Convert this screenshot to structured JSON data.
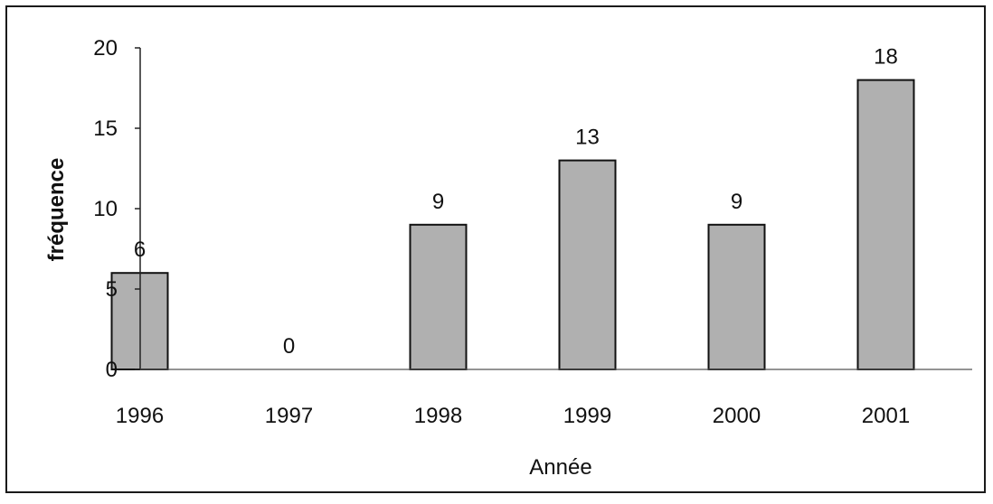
{
  "chart_data": {
    "type": "bar",
    "categories": [
      "1996",
      "1997",
      "1998",
      "1999",
      "2000",
      "2001"
    ],
    "values": [
      6,
      0,
      9,
      13,
      9,
      18
    ],
    "data_labels": [
      "6",
      "0",
      "9",
      "13",
      "9",
      "18"
    ],
    "xlabel": "Année",
    "ylabel": "fréquence",
    "ylim": [
      0,
      20
    ],
    "yticks": [
      0,
      5,
      10,
      15,
      20
    ],
    "ytick_labels": [
      "0",
      "5",
      "10",
      "15",
      "20"
    ],
    "grid": false,
    "bar_color": "#b0b0b0",
    "bar_edge_color": "#111111"
  }
}
